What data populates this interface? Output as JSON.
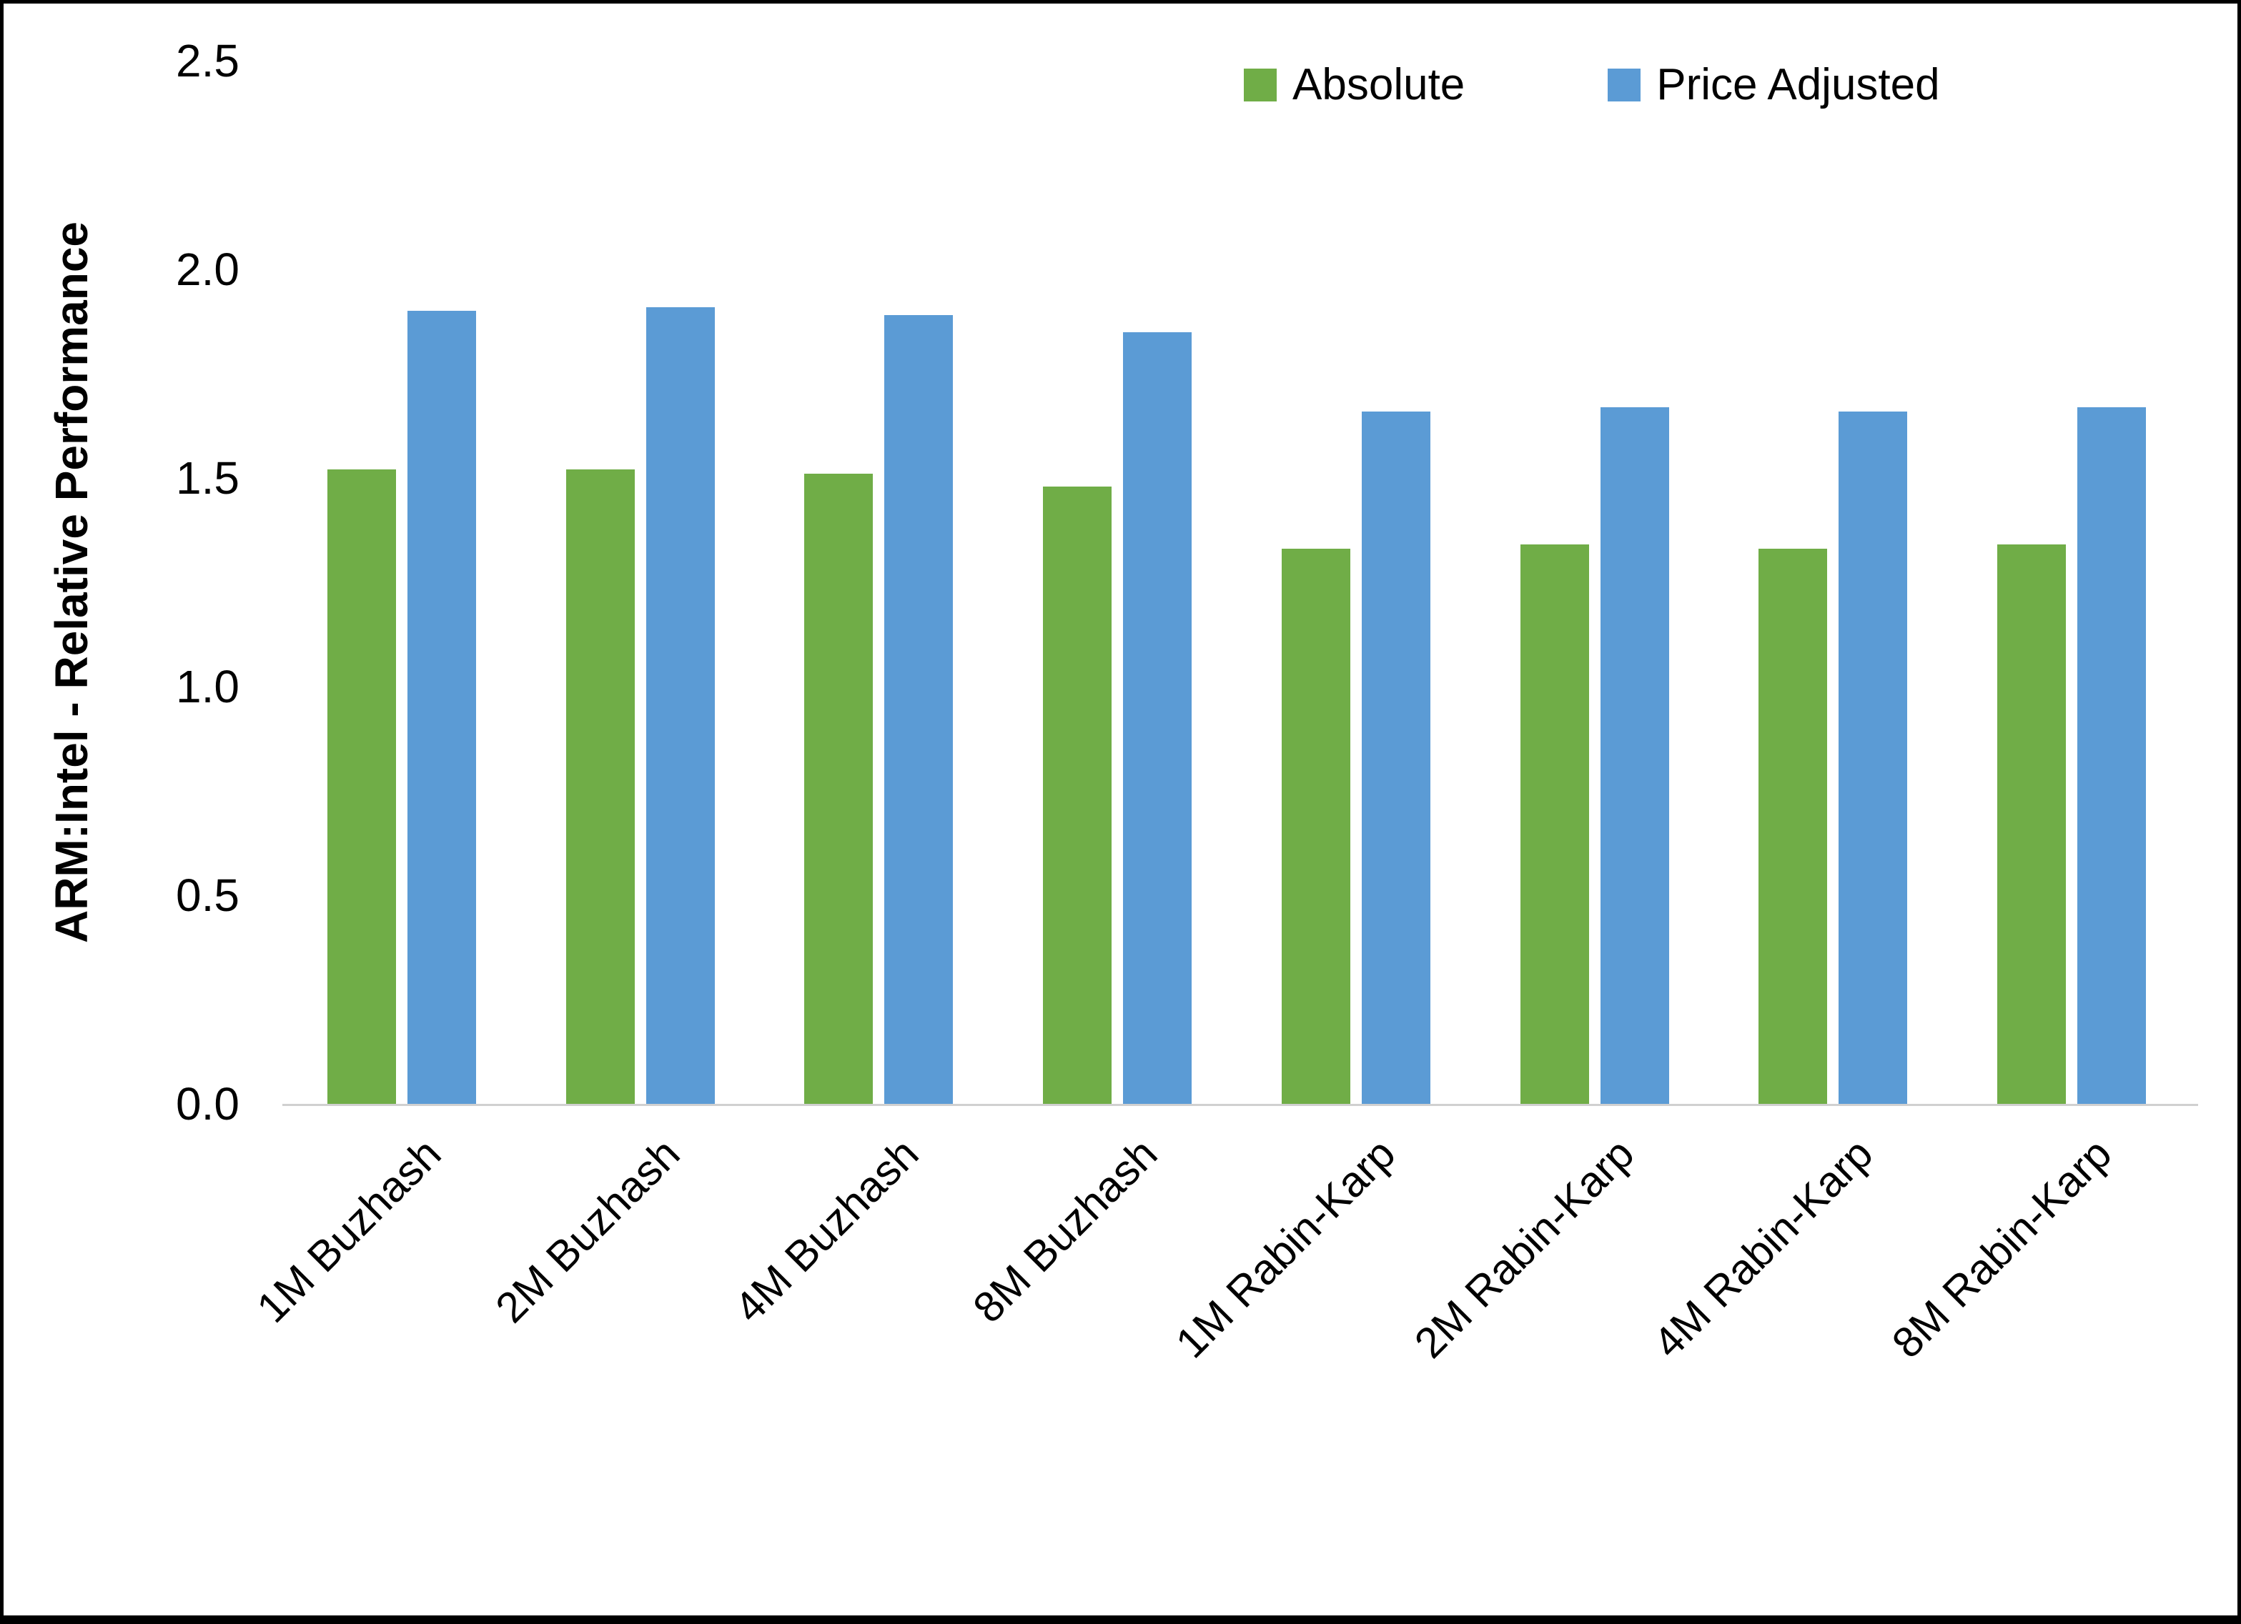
{
  "chart_data": {
    "type": "bar",
    "title": "",
    "xlabel": "",
    "ylabel": "ARM:Intel - Relative Performance",
    "ylim": [
      0,
      2.5
    ],
    "yticks": [
      "0.0",
      "0.5",
      "1.0",
      "1.5",
      "2.0",
      "2.5"
    ],
    "grid": false,
    "legend_position": "top",
    "categories": [
      "1M Buzhash",
      "2M Buzhash",
      "4M Buzhash",
      "8M Buzhash",
      "1M Rabin-Karp",
      "2M Rabin-Karp",
      "4M Rabin-Karp",
      "8M Rabin-Karp"
    ],
    "series": [
      {
        "name": "Absolute",
        "color": "#70AD47",
        "values": [
          1.52,
          1.52,
          1.51,
          1.48,
          1.33,
          1.34,
          1.33,
          1.34
        ]
      },
      {
        "name": "Price Adjusted",
        "color": "#5B9BD5",
        "values": [
          1.9,
          1.91,
          1.89,
          1.85,
          1.66,
          1.67,
          1.66,
          1.67
        ]
      }
    ]
  }
}
